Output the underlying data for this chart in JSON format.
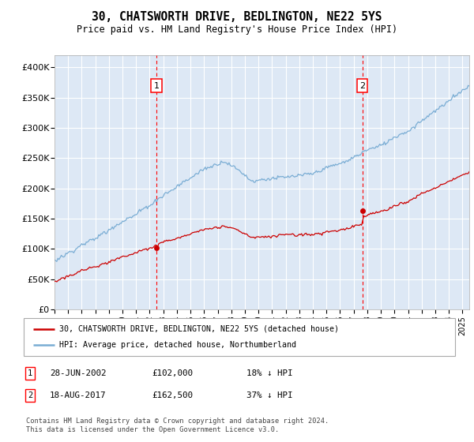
{
  "title": "30, CHATSWORTH DRIVE, BEDLINGTON, NE22 5YS",
  "subtitle": "Price paid vs. HM Land Registry's House Price Index (HPI)",
  "ylim": [
    0,
    420000
  ],
  "yticks": [
    0,
    50000,
    100000,
    150000,
    200000,
    250000,
    300000,
    350000,
    400000
  ],
  "ytick_labels": [
    "£0",
    "£50K",
    "£100K",
    "£150K",
    "£200K",
    "£250K",
    "£300K",
    "£350K",
    "£400K"
  ],
  "sale1_date": 2002.49,
  "sale1_price": 102000,
  "sale1_label": "28-JUN-2002",
  "sale1_amount": "£102,000",
  "sale1_pct": "18% ↓ HPI",
  "sale2_date": 2017.63,
  "sale2_price": 162500,
  "sale2_label": "18-AUG-2017",
  "sale2_amount": "£162,500",
  "sale2_pct": "37% ↓ HPI",
  "line1_color": "#cc0000",
  "line2_color": "#7aadd4",
  "bg_color": "#dde8f5",
  "grid_color": "#ffffff",
  "legend1": "30, CHATSWORTH DRIVE, BEDLINGTON, NE22 5YS (detached house)",
  "legend2": "HPI: Average price, detached house, Northumberland",
  "footnote": "Contains HM Land Registry data © Crown copyright and database right 2024.\nThis data is licensed under the Open Government Licence v3.0.",
  "xstart": 1995,
  "xend": 2025.5
}
